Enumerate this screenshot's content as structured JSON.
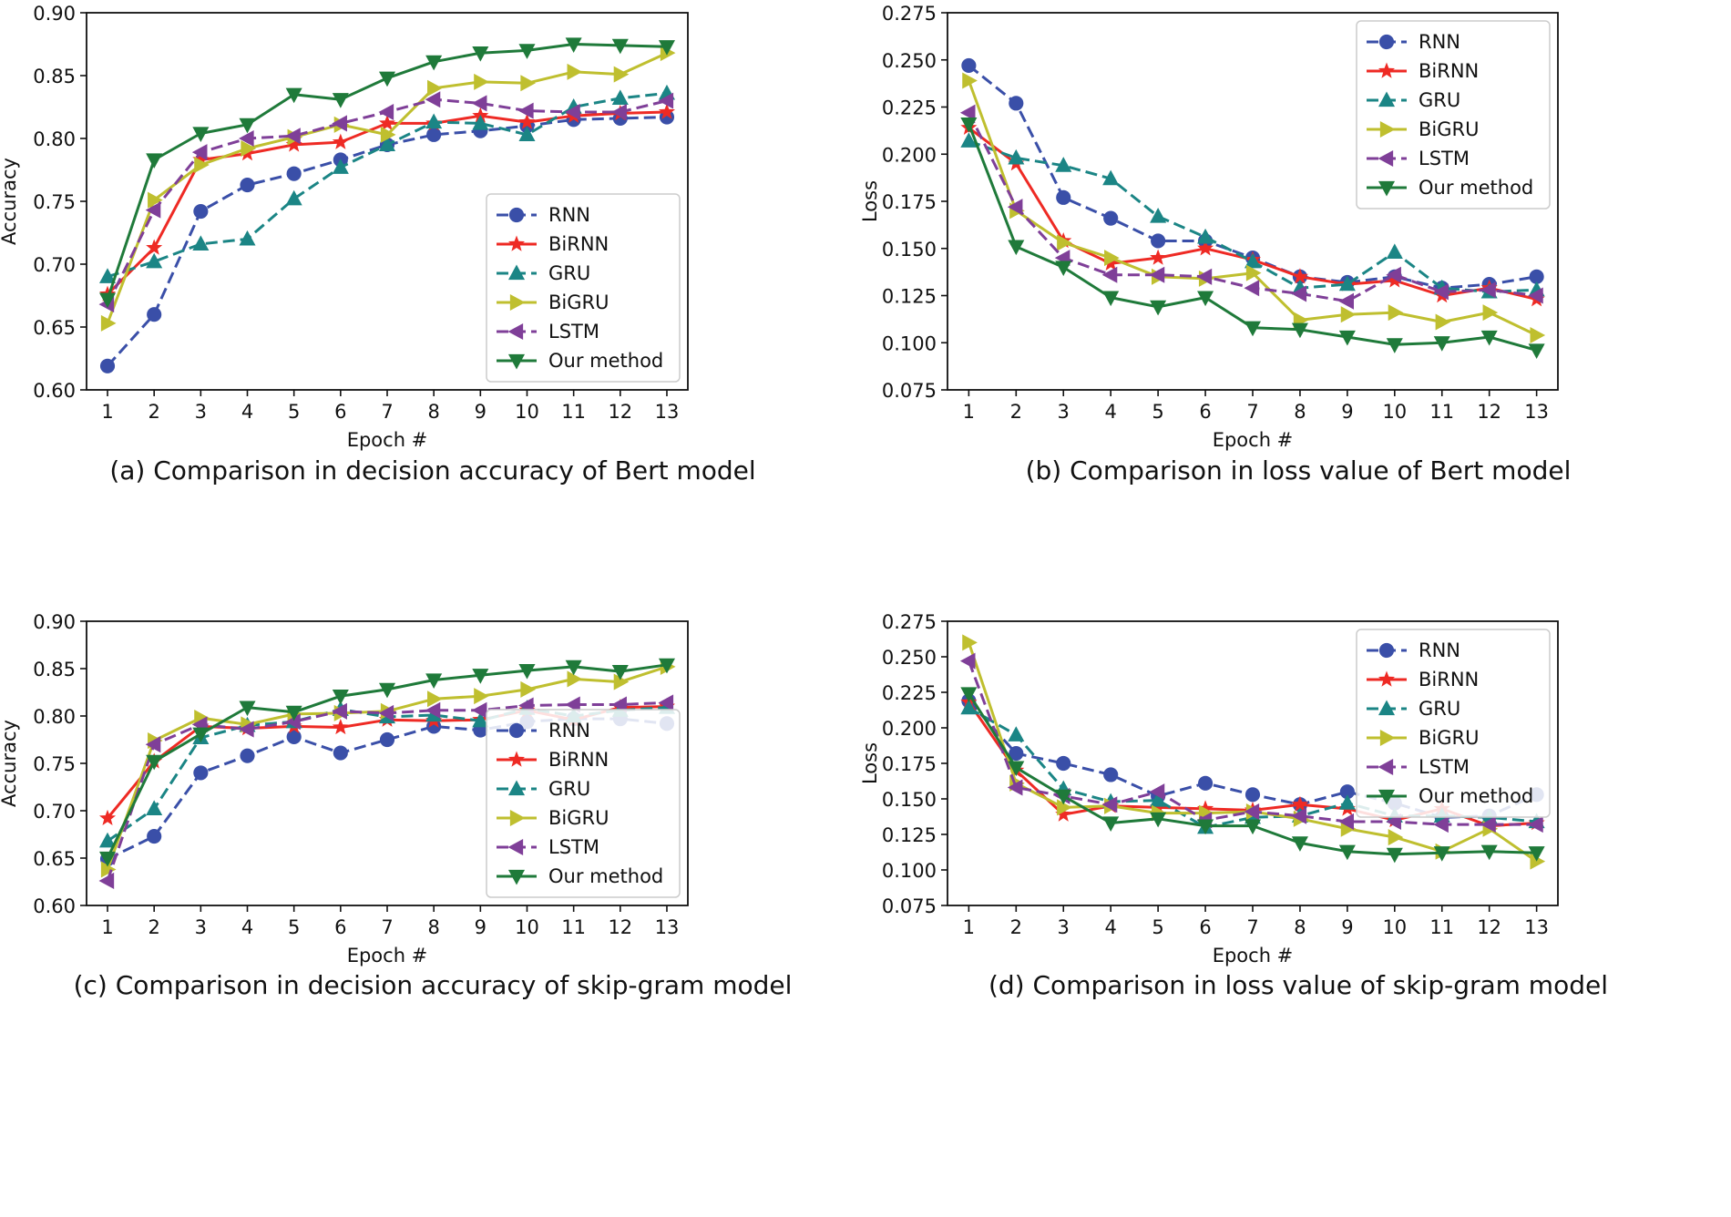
{
  "figure": {
    "captions": [
      "(a) Comparison in decision accuracy of Bert model",
      "(b) Comparison in loss value of Bert model",
      "(c) Comparison in decision accuracy of skip-gram model",
      "(d) Comparison in loss value of skip-gram model"
    ]
  },
  "series_styles": [
    {
      "name": "RNN",
      "color": "#3a4fa8",
      "dash": true,
      "marker": "circle"
    },
    {
      "name": "BiRNN",
      "color": "#ee2a24",
      "dash": false,
      "marker": "star"
    },
    {
      "name": "GRU",
      "color": "#1b8585",
      "dash": true,
      "marker": "triangle-up"
    },
    {
      "name": "BiGRU",
      "color": "#bfbf2f",
      "dash": false,
      "marker": "triangle-right"
    },
    {
      "name": "LSTM",
      "color": "#7f3f98",
      "dash": true,
      "marker": "triangle-left"
    },
    {
      "name": "Our method",
      "color": "#1f7a3a",
      "dash": false,
      "marker": "triangle-down"
    }
  ],
  "chart_data": [
    {
      "type": "line",
      "title": "",
      "caption": "(a) Comparison in decision accuracy of Bert model",
      "xlabel": "Epoch #",
      "ylabel": "Accuracy",
      "x": [
        1,
        2,
        3,
        4,
        5,
        6,
        7,
        8,
        9,
        10,
        11,
        12,
        13
      ],
      "xticks": [
        "1",
        "2",
        "3",
        "4",
        "5",
        "6",
        "7",
        "8",
        "9",
        "10",
        "11",
        "12",
        "13"
      ],
      "xlim": [
        0.55,
        13.45
      ],
      "ylim": [
        0.6,
        0.9
      ],
      "yticks": [
        "0.60",
        "0.65",
        "0.70",
        "0.75",
        "0.80",
        "0.85",
        "0.90"
      ],
      "legend_position": "lower-right",
      "series": [
        {
          "name": "RNN",
          "values": [
            0.619,
            0.66,
            0.742,
            0.763,
            0.772,
            0.783,
            0.795,
            0.803,
            0.806,
            0.81,
            0.815,
            0.816,
            0.817
          ]
        },
        {
          "name": "BiRNN",
          "values": [
            0.676,
            0.713,
            0.783,
            0.788,
            0.795,
            0.797,
            0.812,
            0.812,
            0.818,
            0.813,
            0.818,
            0.82,
            0.821
          ]
        },
        {
          "name": "GRU",
          "values": [
            0.69,
            0.702,
            0.716,
            0.72,
            0.752,
            0.777,
            0.795,
            0.813,
            0.812,
            0.803,
            0.825,
            0.832,
            0.836
          ]
        },
        {
          "name": "BiGRU",
          "values": [
            0.653,
            0.751,
            0.779,
            0.792,
            0.801,
            0.811,
            0.803,
            0.84,
            0.845,
            0.844,
            0.853,
            0.851,
            0.868
          ]
        },
        {
          "name": "LSTM",
          "values": [
            0.668,
            0.743,
            0.789,
            0.8,
            0.802,
            0.812,
            0.821,
            0.831,
            0.828,
            0.822,
            0.821,
            0.821,
            0.83
          ]
        },
        {
          "name": "Our method",
          "values": [
            0.672,
            0.783,
            0.804,
            0.811,
            0.835,
            0.831,
            0.848,
            0.861,
            0.868,
            0.87,
            0.875,
            0.874,
            0.873
          ]
        }
      ]
    },
    {
      "type": "line",
      "title": "",
      "caption": "(b) Comparison in loss value of Bert model",
      "xlabel": "Epoch #",
      "ylabel": "Loss",
      "x": [
        1,
        2,
        3,
        4,
        5,
        6,
        7,
        8,
        9,
        10,
        11,
        12,
        13
      ],
      "xticks": [
        "1",
        "2",
        "3",
        "4",
        "5",
        "6",
        "7",
        "8",
        "9",
        "10",
        "11",
        "12",
        "13"
      ],
      "xlim": [
        0.55,
        13.45
      ],
      "ylim": [
        0.075,
        0.275
      ],
      "yticks": [
        "0.075",
        "0.100",
        "0.125",
        "0.150",
        "0.175",
        "0.200",
        "0.225",
        "0.250",
        "0.275"
      ],
      "legend_position": "upper-right",
      "series": [
        {
          "name": "RNN",
          "values": [
            0.247,
            0.227,
            0.177,
            0.166,
            0.154,
            0.154,
            0.145,
            0.135,
            0.132,
            0.135,
            0.129,
            0.131,
            0.135
          ]
        },
        {
          "name": "BiRNN",
          "values": [
            0.214,
            0.195,
            0.154,
            0.142,
            0.145,
            0.15,
            0.144,
            0.135,
            0.131,
            0.133,
            0.125,
            0.129,
            0.123
          ]
        },
        {
          "name": "GRU",
          "values": [
            0.207,
            0.198,
            0.194,
            0.187,
            0.167,
            0.156,
            0.143,
            0.129,
            0.131,
            0.148,
            0.129,
            0.127,
            0.128
          ]
        },
        {
          "name": "BiGRU",
          "values": [
            0.239,
            0.17,
            0.153,
            0.145,
            0.135,
            0.134,
            0.137,
            0.112,
            0.115,
            0.116,
            0.111,
            0.116,
            0.104
          ]
        },
        {
          "name": "LSTM",
          "values": [
            0.222,
            0.172,
            0.145,
            0.136,
            0.136,
            0.135,
            0.129,
            0.126,
            0.122,
            0.136,
            0.127,
            0.128,
            0.125
          ]
        },
        {
          "name": "Our method",
          "values": [
            0.216,
            0.151,
            0.14,
            0.124,
            0.119,
            0.124,
            0.108,
            0.107,
            0.103,
            0.099,
            0.1,
            0.103,
            0.096
          ]
        }
      ]
    },
    {
      "type": "line",
      "title": "",
      "caption": "(c) Comparison in decision accuracy of skip-gram model",
      "xlabel": "Epoch #",
      "ylabel": "Accuracy",
      "x": [
        1,
        2,
        3,
        4,
        5,
        6,
        7,
        8,
        9,
        10,
        11,
        12,
        13
      ],
      "xticks": [
        "1",
        "2",
        "3",
        "4",
        "5",
        "6",
        "7",
        "8",
        "9",
        "10",
        "11",
        "12",
        "13"
      ],
      "xlim": [
        0.55,
        13.45
      ],
      "ylim": [
        0.6,
        0.9
      ],
      "yticks": [
        "0.60",
        "0.65",
        "0.70",
        "0.75",
        "0.80",
        "0.85",
        "0.90"
      ],
      "legend_position": "lower-right",
      "series": [
        {
          "name": "RNN",
          "values": [
            0.649,
            0.673,
            0.74,
            0.758,
            0.778,
            0.761,
            0.775,
            0.789,
            0.785,
            0.794,
            0.797,
            0.797,
            0.792
          ]
        },
        {
          "name": "BiRNN",
          "values": [
            0.692,
            0.752,
            0.789,
            0.787,
            0.789,
            0.788,
            0.796,
            0.795,
            0.796,
            0.806,
            0.796,
            0.809,
            0.81
          ]
        },
        {
          "name": "GRU",
          "values": [
            0.668,
            0.702,
            0.777,
            0.79,
            0.794,
            0.807,
            0.799,
            0.801,
            0.795,
            0.808,
            0.8,
            0.806,
            0.809
          ]
        },
        {
          "name": "BiGRU",
          "values": [
            0.638,
            0.774,
            0.798,
            0.791,
            0.802,
            0.803,
            0.805,
            0.818,
            0.821,
            0.828,
            0.839,
            0.836,
            0.852
          ]
        },
        {
          "name": "LSTM",
          "values": [
            0.626,
            0.77,
            0.791,
            0.786,
            0.794,
            0.805,
            0.803,
            0.806,
            0.806,
            0.811,
            0.812,
            0.812,
            0.814
          ]
        },
        {
          "name": "Our method",
          "values": [
            0.65,
            0.752,
            0.781,
            0.809,
            0.804,
            0.821,
            0.828,
            0.838,
            0.843,
            0.848,
            0.852,
            0.847,
            0.854
          ]
        }
      ]
    },
    {
      "type": "line",
      "title": "",
      "caption": "(d) Comparison in loss value of skip-gram model",
      "xlabel": "Epoch #",
      "ylabel": "Loss",
      "x": [
        1,
        2,
        3,
        4,
        5,
        6,
        7,
        8,
        9,
        10,
        11,
        12,
        13
      ],
      "xticks": [
        "1",
        "2",
        "3",
        "4",
        "5",
        "6",
        "7",
        "8",
        "9",
        "10",
        "11",
        "12",
        "13"
      ],
      "xlim": [
        0.55,
        13.45
      ],
      "ylim": [
        0.075,
        0.275
      ],
      "yticks": [
        "0.075",
        "0.100",
        "0.125",
        "0.150",
        "0.175",
        "0.200",
        "0.225",
        "0.250",
        "0.275"
      ],
      "legend_position": "upper-right",
      "series": [
        {
          "name": "RNN",
          "values": [
            0.219,
            0.182,
            0.175,
            0.167,
            0.152,
            0.161,
            0.153,
            0.146,
            0.155,
            0.147,
            0.137,
            0.138,
            0.153
          ]
        },
        {
          "name": "BiRNN",
          "values": [
            0.218,
            0.17,
            0.139,
            0.145,
            0.144,
            0.143,
            0.142,
            0.146,
            0.143,
            0.135,
            0.143,
            0.131,
            0.133
          ]
        },
        {
          "name": "GRU",
          "values": [
            0.214,
            0.195,
            0.157,
            0.148,
            0.149,
            0.13,
            0.137,
            0.138,
            0.147,
            0.138,
            0.138,
            0.137,
            0.134
          ]
        },
        {
          "name": "BiGRU",
          "values": [
            0.26,
            0.161,
            0.144,
            0.145,
            0.14,
            0.14,
            0.141,
            0.136,
            0.129,
            0.123,
            0.113,
            0.129,
            0.106
          ]
        },
        {
          "name": "LSTM",
          "values": [
            0.247,
            0.158,
            0.152,
            0.146,
            0.155,
            0.135,
            0.141,
            0.138,
            0.134,
            0.134,
            0.132,
            0.132,
            0.132
          ]
        },
        {
          "name": "Our method",
          "values": [
            0.224,
            0.172,
            0.152,
            0.133,
            0.136,
            0.131,
            0.131,
            0.119,
            0.113,
            0.111,
            0.112,
            0.113,
            0.112
          ]
        }
      ]
    }
  ]
}
